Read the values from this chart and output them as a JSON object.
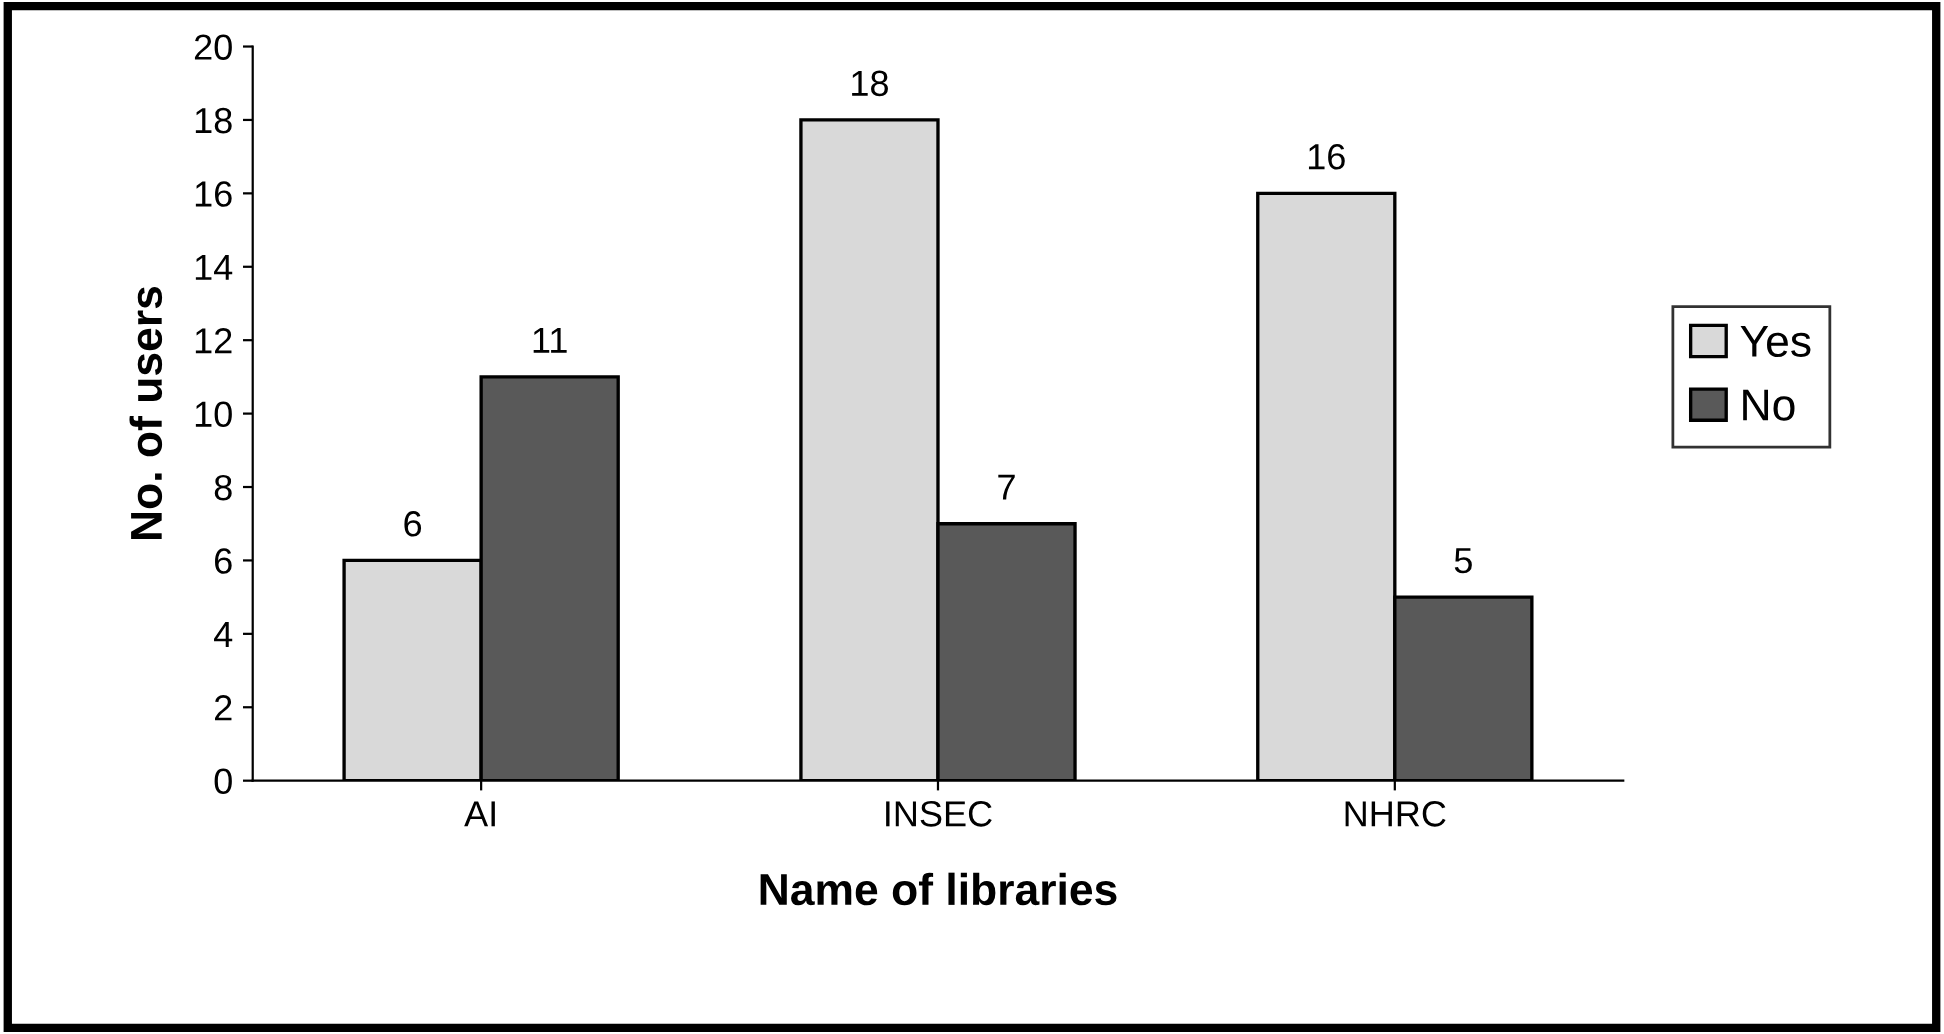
{
  "chart_data": {
    "type": "bar",
    "xlabel": "Name of libraries",
    "ylabel": "No. of users",
    "categories": [
      "AI",
      "INSEC",
      "NHRC"
    ],
    "series": [
      {
        "name": "Yes",
        "color": "#d9d9d9",
        "values": [
          6,
          18,
          16
        ]
      },
      {
        "name": "No",
        "color": "#595959",
        "values": [
          11,
          7,
          5
        ]
      }
    ],
    "ylim": [
      0,
      20
    ],
    "yticks": [
      0,
      2,
      4,
      6,
      8,
      10,
      12,
      14,
      16,
      18,
      20
    ],
    "grid": false,
    "legend": "right",
    "data_labels": true
  }
}
